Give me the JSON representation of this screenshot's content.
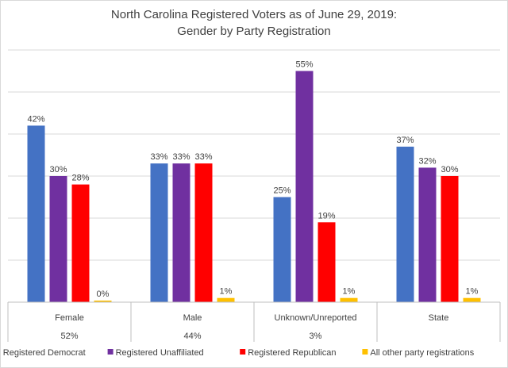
{
  "chart_data": {
    "type": "bar",
    "title": [
      "North Carolina Registered Voters as of June 29, 2019:",
      "Gender by Party Registration"
    ],
    "categories": [
      "Female",
      "Male",
      "Unknown/Unreported",
      "State"
    ],
    "category_shares": [
      "52%",
      "44%",
      "3%",
      ""
    ],
    "series": [
      {
        "name": "Registered Democrat",
        "color": "#4472C4",
        "values": [
          42,
          33,
          25,
          37
        ]
      },
      {
        "name": "Registered Unaffiliated",
        "color": "#7030A0",
        "values": [
          30,
          33,
          55,
          32
        ]
      },
      {
        "name": "Registered Republican",
        "color": "#FF0000",
        "values": [
          28,
          33,
          19,
          30
        ]
      },
      {
        "name": "All other party registrations",
        "color": "#FFC000",
        "values": [
          0,
          1,
          1,
          1
        ]
      }
    ],
    "ylim": [
      0,
      60
    ],
    "grid": true,
    "value_suffix": "%",
    "legend_position": "bottom"
  }
}
